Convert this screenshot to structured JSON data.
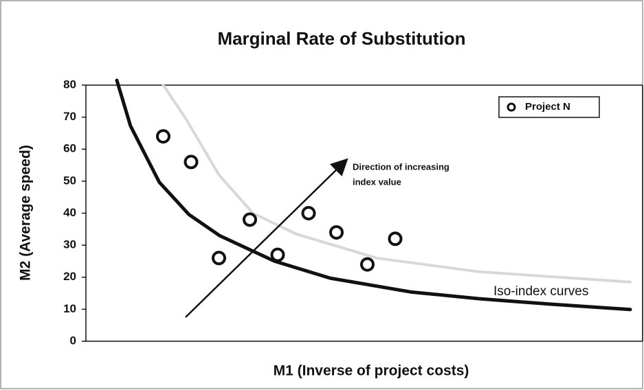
{
  "chart_data": {
    "type": "scatter",
    "title": "Marginal Rate of Substitution",
    "x_label": "M1 (Inverse of project costs)",
    "y_label": "M2 (Average speed)",
    "xlim": [
      0,
      18
    ],
    "ylim": [
      0,
      80
    ],
    "yticks": [
      0,
      10,
      20,
      30,
      40,
      50,
      60,
      70,
      80
    ],
    "legend": "upper right",
    "series": [
      {
        "name": "Project N",
        "color": "#111111",
        "x": [
          2.5,
          3.4,
          4.3,
          5.3,
          6.2,
          7.2,
          8.1,
          9.1,
          10.0
        ],
        "values": [
          64,
          56,
          26,
          38,
          27,
          40,
          34,
          24,
          32
        ]
      }
    ],
    "curves": [
      {
        "color": "#d8d8d8",
        "x": [
          2.5,
          3.2,
          4.3,
          5.4,
          6.8,
          9.4,
          12.7,
          17.6
        ],
        "values": [
          80,
          70,
          52,
          40,
          33.5,
          26,
          21.7,
          18.5
        ]
      },
      {
        "color": "#111111",
        "x": [
          1.0,
          1.44,
          2.37,
          3.33,
          4.32,
          6.1,
          7.9,
          10.5,
          12.7,
          15.0,
          17.6
        ],
        "values": [
          81.5,
          67.3,
          49.7,
          39.6,
          33,
          25,
          19.7,
          15.4,
          13.3,
          11.6,
          9.9
        ]
      }
    ],
    "annotations": {
      "arrow_text": [
        "Direction of increasing",
        "index value"
      ],
      "curve_label": "Iso-index curves"
    }
  }
}
